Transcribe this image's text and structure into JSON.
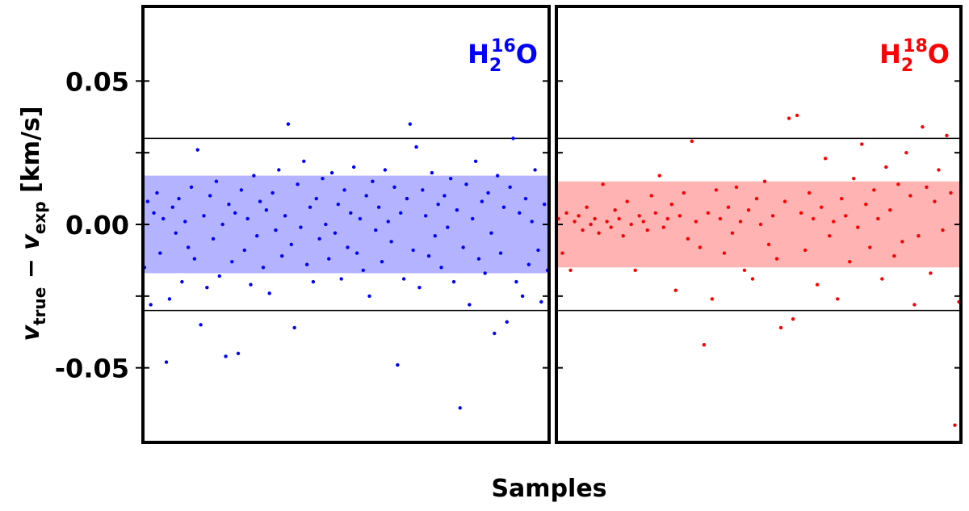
{
  "chart_data": {
    "type": "scatter",
    "xlabel": "Samples",
    "ylabel_main": "v",
    "ylabel_sub1": "true",
    "ylabel_minus": " − ",
    "ylabel_sub2": "exp",
    "ylabel_unit": " [km/s]",
    "ylim": [
      -0.076,
      0.076
    ],
    "yticks": [
      -0.05,
      -0.025,
      0,
      0.025,
      0.05
    ],
    "ytick_labels": [
      "-0.05",
      "",
      "0.00",
      "",
      "0.05"
    ],
    "threshold_lines": [
      0.03,
      -0.03
    ],
    "panels": [
      {
        "label": "H",
        "label_sub": "2",
        "label_sup": "16",
        "label_end": "O",
        "color": "#0000ff",
        "band_color": "#b3b3ff",
        "band": [
          -0.017,
          0.017
        ],
        "y": [
          -0.015,
          0.008,
          -0.028,
          0.004,
          0.011,
          -0.01,
          0.002,
          -0.048,
          -0.026,
          0.006,
          -0.003,
          0.009,
          -0.02,
          0.001,
          -0.008,
          0.013,
          -0.012,
          0.026,
          -0.035,
          0.003,
          -0.022,
          0.01,
          -0.005,
          0.015,
          -0.018,
          0.0,
          -0.046,
          0.007,
          -0.013,
          0.004,
          -0.045,
          0.012,
          -0.009,
          0.002,
          -0.021,
          0.017,
          -0.004,
          0.008,
          -0.015,
          0.005,
          -0.024,
          0.011,
          -0.002,
          0.019,
          -0.011,
          0.003,
          0.035,
          -0.007,
          -0.036,
          0.014,
          -0.001,
          0.022,
          -0.014,
          0.006,
          -0.02,
          0.009,
          -0.005,
          0.016,
          0.0,
          -0.012,
          0.018,
          -0.003,
          0.007,
          -0.019,
          0.012,
          -0.008,
          0.004,
          0.02,
          -0.01,
          0.002,
          -0.016,
          0.01,
          -0.025,
          0.015,
          -0.002,
          0.006,
          -0.013,
          0.019,
          0.001,
          -0.006,
          0.013,
          -0.049,
          0.004,
          -0.019,
          0.009,
          0.035,
          -0.009,
          0.027,
          -0.022,
          0.012,
          0.003,
          -0.011,
          0.018,
          -0.004,
          0.007,
          -0.015,
          0.01,
          -0.001,
          0.016,
          -0.02,
          0.005,
          -0.064,
          -0.008,
          0.014,
          -0.028,
          0.002,
          0.022,
          -0.012,
          0.008,
          -0.017,
          0.011,
          -0.003,
          -0.038,
          0.017,
          -0.01,
          0.006,
          -0.034,
          0.013,
          0.03,
          -0.02,
          0.004,
          -0.025,
          0.009,
          -0.014,
          0.001,
          0.019,
          -0.009,
          -0.027,
          0.007,
          -0.016
        ]
      },
      {
        "label": "H",
        "label_sub": "2",
        "label_sup": "18",
        "label_end": "O",
        "color": "#ff0000",
        "band_color": "#ffb3b3",
        "band": [
          -0.015,
          0.015
        ],
        "y": [
          0.002,
          -0.01,
          0.004,
          -0.016,
          0.001,
          0.003,
          -0.002,
          0.006,
          0.0,
          0.002,
          -0.003,
          0.014,
          0.001,
          -0.001,
          0.005,
          0.002,
          -0.004,
          0.008,
          0.0,
          -0.016,
          0.003,
          0.001,
          -0.002,
          0.01,
          0.004,
          0.017,
          -0.001,
          0.002,
          0.007,
          -0.023,
          0.003,
          0.011,
          -0.005,
          0.029,
          0.001,
          -0.008,
          -0.042,
          0.004,
          -0.026,
          0.012,
          0.002,
          -0.01,
          0.006,
          -0.003,
          0.013,
          0.001,
          -0.016,
          0.005,
          -0.019,
          0.009,
          0.0,
          0.015,
          -0.007,
          0.003,
          -0.012,
          -0.036,
          0.008,
          0.037,
          -0.033,
          0.038,
          0.004,
          -0.009,
          0.011,
          0.002,
          -0.021,
          0.006,
          0.023,
          -0.004,
          0.001,
          -0.026,
          0.009,
          0.003,
          -0.013,
          0.016,
          -0.001,
          0.028,
          0.007,
          -0.008,
          0.012,
          0.002,
          -0.019,
          0.02,
          0.005,
          -0.011,
          0.014,
          -0.006,
          0.025,
          0.01,
          -0.028,
          -0.004,
          0.034,
          0.013,
          -0.017,
          0.008,
          0.019,
          -0.002,
          0.031,
          0.011,
          -0.07,
          -0.027
        ]
      }
    ]
  }
}
